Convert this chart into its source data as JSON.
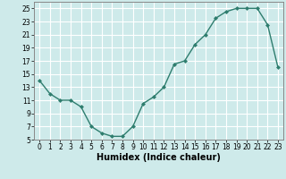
{
  "x": [
    0,
    1,
    2,
    3,
    4,
    5,
    6,
    7,
    8,
    9,
    10,
    11,
    12,
    13,
    14,
    15,
    16,
    17,
    18,
    19,
    20,
    21,
    22,
    23
  ],
  "y": [
    14,
    12,
    11,
    11,
    10,
    7,
    6,
    5.5,
    5.5,
    7,
    10.5,
    11.5,
    13,
    16.5,
    17,
    19.5,
    21,
    23.5,
    24.5,
    25,
    25,
    25,
    22.5,
    16
  ],
  "line_color": "#2e7d6e",
  "marker": "D",
  "marker_size": 2.0,
  "bg_color": "#ceeaea",
  "grid_color": "#ffffff",
  "xlabel": "Humidex (Indice chaleur)",
  "ylim": [
    5,
    26
  ],
  "xlim": [
    -0.5,
    23.5
  ],
  "yticks": [
    5,
    7,
    9,
    11,
    13,
    15,
    17,
    19,
    21,
    23,
    25
  ],
  "xticks": [
    0,
    1,
    2,
    3,
    4,
    5,
    6,
    7,
    8,
    9,
    10,
    11,
    12,
    13,
    14,
    15,
    16,
    17,
    18,
    19,
    20,
    21,
    22,
    23
  ],
  "tick_fontsize": 5.5,
  "xlabel_fontsize": 7,
  "linewidth": 1.0
}
